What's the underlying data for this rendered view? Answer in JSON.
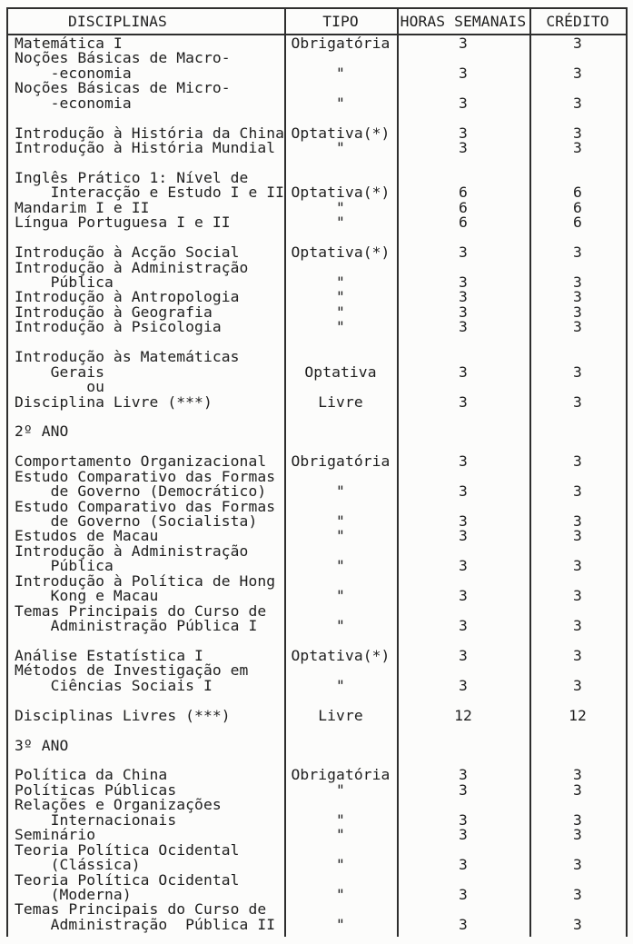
{
  "colors": {
    "paper": "#fcfcfb",
    "ink": "#1e1e1e",
    "line": "#2e2e2e"
  },
  "table": {
    "headers": {
      "disciplinas": "DISCIPLINAS",
      "tipo": "TIPO",
      "horas": "HORAS SEMANAIS",
      "credito": "CRÉDITO"
    },
    "rows": [
      {
        "d": "Matemática I",
        "t": "Obrigatória",
        "h": "3",
        "c": "3"
      },
      {
        "d": "Noções Básicas de Macro-",
        "t": "",
        "h": "",
        "c": ""
      },
      {
        "d": "    -economia",
        "t": "\"",
        "h": "3",
        "c": "3"
      },
      {
        "d": "Noções Básicas de Micro-",
        "t": "",
        "h": "",
        "c": ""
      },
      {
        "d": "    -economia",
        "t": "\"",
        "h": "3",
        "c": "3"
      },
      {
        "d": "",
        "t": "",
        "h": "",
        "c": ""
      },
      {
        "d": "Introdução à História da China",
        "t": "Optativa(*)",
        "h": "3",
        "c": "3"
      },
      {
        "d": "Introdução à História Mundial",
        "t": "\"",
        "h": "3",
        "c": "3"
      },
      {
        "d": "",
        "t": "",
        "h": "",
        "c": ""
      },
      {
        "d": "Inglês Prático 1: Nível de",
        "t": "",
        "h": "",
        "c": ""
      },
      {
        "d": "    Interacção e Estudo I e II",
        "t": "Optativa(*)",
        "h": "6",
        "c": "6"
      },
      {
        "d": "Mandarim I e II",
        "t": "\"",
        "h": "6",
        "c": "6"
      },
      {
        "d": "Língua Portuguesa I e II",
        "t": "\"",
        "h": "6",
        "c": "6"
      },
      {
        "d": "",
        "t": "",
        "h": "",
        "c": ""
      },
      {
        "d": "Introdução à Acção Social",
        "t": "Optativa(*)",
        "h": "3",
        "c": "3"
      },
      {
        "d": "Introdução à Administração",
        "t": "",
        "h": "",
        "c": ""
      },
      {
        "d": "    Pública",
        "t": "\"",
        "h": "3",
        "c": "3"
      },
      {
        "d": "Introdução à Antropologia",
        "t": "\"",
        "h": "3",
        "c": "3"
      },
      {
        "d": "Introdução à Geografia",
        "t": "\"",
        "h": "3",
        "c": "3"
      },
      {
        "d": "Introdução à Psicologia",
        "t": "\"",
        "h": "3",
        "c": "3"
      },
      {
        "d": "",
        "t": "",
        "h": "",
        "c": ""
      },
      {
        "d": "Introdução às Matemáticas",
        "t": "",
        "h": "",
        "c": ""
      },
      {
        "d": "    Gerais",
        "t": "Optativa",
        "h": "3",
        "c": "3"
      },
      {
        "d": "        ou",
        "t": "",
        "h": "",
        "c": ""
      },
      {
        "d": "Disciplina Livre (***)",
        "t": "Livre",
        "h": "3",
        "c": "3"
      },
      {
        "d": "",
        "t": "",
        "h": "",
        "c": ""
      },
      {
        "d": "2º ANO",
        "t": "",
        "h": "",
        "c": ""
      },
      {
        "d": "",
        "t": "",
        "h": "",
        "c": ""
      },
      {
        "d": "Comportamento Organizacional",
        "t": "Obrigatória",
        "h": "3",
        "c": "3"
      },
      {
        "d": "Estudo Comparativo das Formas",
        "t": "",
        "h": "",
        "c": ""
      },
      {
        "d": "    de Governo (Democrático)",
        "t": "\"",
        "h": "3",
        "c": "3"
      },
      {
        "d": "Estudo Comparativo das Formas",
        "t": "",
        "h": "",
        "c": ""
      },
      {
        "d": "    de Governo (Socialista)",
        "t": "\"",
        "h": "3",
        "c": "3"
      },
      {
        "d": "Estudos de Macau",
        "t": "\"",
        "h": "3",
        "c": "3"
      },
      {
        "d": "Introdução à Administração",
        "t": "",
        "h": "",
        "c": ""
      },
      {
        "d": "    Pública",
        "t": "\"",
        "h": "3",
        "c": "3"
      },
      {
        "d": "Introdução à Política de Hong",
        "t": "",
        "h": "",
        "c": ""
      },
      {
        "d": "    Kong e Macau",
        "t": "\"",
        "h": "3",
        "c": "3"
      },
      {
        "d": "Temas Principais do Curso de",
        "t": "",
        "h": "",
        "c": ""
      },
      {
        "d": "    Administração Pública I",
        "t": "\"",
        "h": "3",
        "c": "3"
      },
      {
        "d": "",
        "t": "",
        "h": "",
        "c": ""
      },
      {
        "d": "Análise Estatística I",
        "t": "Optativa(*)",
        "h": "3",
        "c": "3"
      },
      {
        "d": "Métodos de Investigação em",
        "t": "",
        "h": "",
        "c": ""
      },
      {
        "d": "    Ciências Sociais I",
        "t": "\"",
        "h": "3",
        "c": "3"
      },
      {
        "d": "",
        "t": "",
        "h": "",
        "c": ""
      },
      {
        "d": "Disciplinas Livres (***)",
        "t": "Livre",
        "h": "12",
        "c": "12"
      },
      {
        "d": "",
        "t": "",
        "h": "",
        "c": ""
      },
      {
        "d": "3º ANO",
        "t": "",
        "h": "",
        "c": ""
      },
      {
        "d": "",
        "t": "",
        "h": "",
        "c": ""
      },
      {
        "d": "Política da China",
        "t": "Obrigatória",
        "h": "3",
        "c": "3"
      },
      {
        "d": "Políticas Públicas",
        "t": "\"",
        "h": "3",
        "c": "3"
      },
      {
        "d": "Relações e Organizações",
        "t": "",
        "h": "",
        "c": ""
      },
      {
        "d": "    Internacionais",
        "t": "\"",
        "h": "3",
        "c": "3"
      },
      {
        "d": "Seminário",
        "t": "\"",
        "h": "3",
        "c": "3"
      },
      {
        "d": "Teoria Política Ocidental",
        "t": "",
        "h": "",
        "c": ""
      },
      {
        "d": "    (Clássica)",
        "t": "\"",
        "h": "3",
        "c": "3"
      },
      {
        "d": "Teoria Política Ocidental",
        "t": "",
        "h": "",
        "c": ""
      },
      {
        "d": "    (Moderna)",
        "t": "\"",
        "h": "3",
        "c": "3"
      },
      {
        "d": "Temas Principais do Curso de",
        "t": "",
        "h": "",
        "c": ""
      },
      {
        "d": "    Administração  Pública II",
        "t": "\"",
        "h": "3",
        "c": "3"
      }
    ]
  }
}
